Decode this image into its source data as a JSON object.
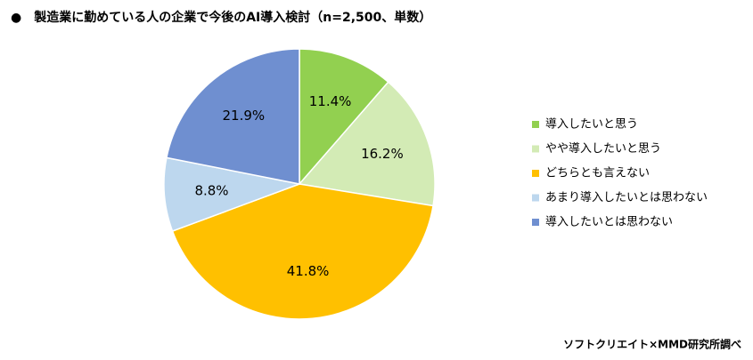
{
  "chart_data": {
    "type": "pie",
    "title": "●　製造業に勤めている人の企業で今後のAI導入検討（n=2,500、単数）",
    "source": "ソフトクリエイト×MMD研究所調べ",
    "categories": [
      "導入したいと思う",
      "やや導入したいと思う",
      "どちらとも言えない",
      "あまり導入したいとは思わない",
      "導入したいとは思わない"
    ],
    "values": [
      11.4,
      16.2,
      41.8,
      8.8,
      21.9
    ],
    "value_labels": [
      "11.4%",
      "16.2%",
      "41.8%",
      "8.8%",
      "21.9%"
    ],
    "colors": [
      "#92d050",
      "#d3ebb5",
      "#ffc000",
      "#bdd7ee",
      "#6f8fd0"
    ],
    "legend": "right"
  }
}
